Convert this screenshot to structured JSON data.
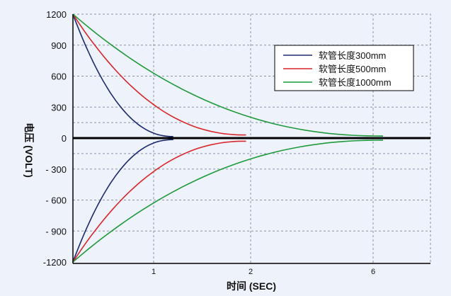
{
  "chart_data": {
    "type": "line",
    "xlabel": "时间 (SEC)",
    "ylabel": "电压 (VOLT)",
    "x_ticks": [
      "1",
      "2",
      "6"
    ],
    "y_ticks": [
      "1200",
      "900",
      "600",
      "300",
      "0",
      "- 300",
      "- 600",
      "- 900",
      "-1200"
    ],
    "ylim": [
      -1200,
      1200
    ],
    "grid": true,
    "legend_position": "top-right",
    "series": [
      {
        "name": "软管长度300mm",
        "color": "#1c2a6e",
        "x_zero": 1.1,
        "peak_y": 1200,
        "end_y": 15
      },
      {
        "name": "软管长度500mm",
        "color": "#d8262a",
        "x_zero": 1.85,
        "peak_y": 1200,
        "end_y": 30
      },
      {
        "name": "软管长度1000mm",
        "color": "#1f9a3c",
        "x_zero": 6.0,
        "peak_y": 1200,
        "end_y": 20
      }
    ]
  },
  "colors": {
    "background": "#eef2fb",
    "grid": "#8a93a8",
    "axis": "#000000"
  }
}
